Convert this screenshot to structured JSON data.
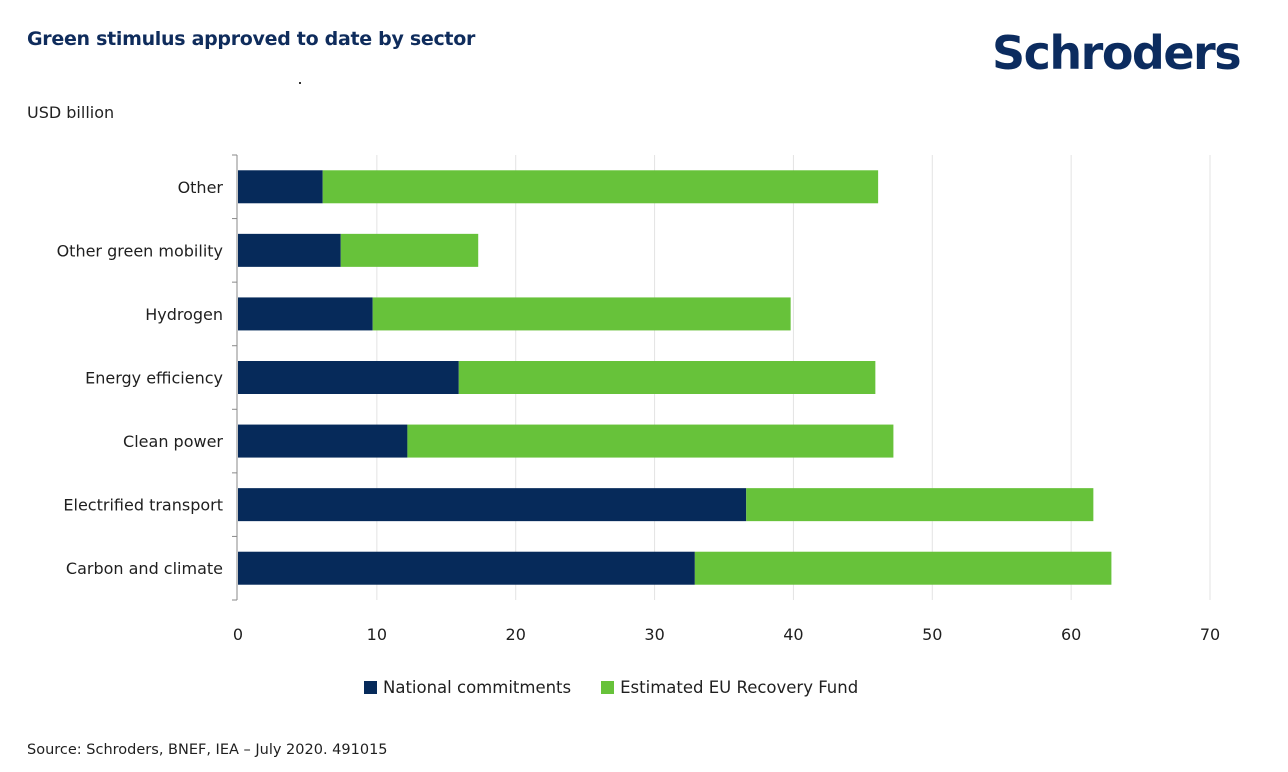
{
  "header": {
    "title": "Green stimulus approved to date by sector",
    "unit_label": "USD billion",
    "logo_text": "Schroders"
  },
  "colors": {
    "title": "#0f2c5c",
    "national": "#062a5a",
    "eu_fund": "#67c23a",
    "grid": "#e3e3e3",
    "axis": "#8a8a8a"
  },
  "chart_data": {
    "type": "bar",
    "orientation": "horizontal",
    "stacked": true,
    "title": "Green stimulus approved to date by sector",
    "xlabel": "",
    "ylabel": "USD billion",
    "xlim": [
      0,
      70
    ],
    "x_ticks": [
      0,
      10,
      20,
      30,
      40,
      50,
      60,
      70
    ],
    "grid": true,
    "legend_position": "bottom",
    "categories": [
      "Other",
      "Other green mobility",
      "Hydrogen",
      "Energy efficiency",
      "Clean power",
      "Electrified transport",
      "Carbon and climate"
    ],
    "series": [
      {
        "name": "National commitments",
        "color": "#062a5a",
        "values": [
          6.1,
          7.4,
          9.7,
          15.9,
          12.2,
          36.6,
          32.9
        ]
      },
      {
        "name": "Estimated EU Recovery Fund",
        "color": "#67c23a",
        "values": [
          40.0,
          9.9,
          30.1,
          30.0,
          35.0,
          25.0,
          30.0
        ]
      }
    ]
  },
  "footer": {
    "source": "Source: Schroders, BNEF, IEA – July 2020. 491015"
  }
}
